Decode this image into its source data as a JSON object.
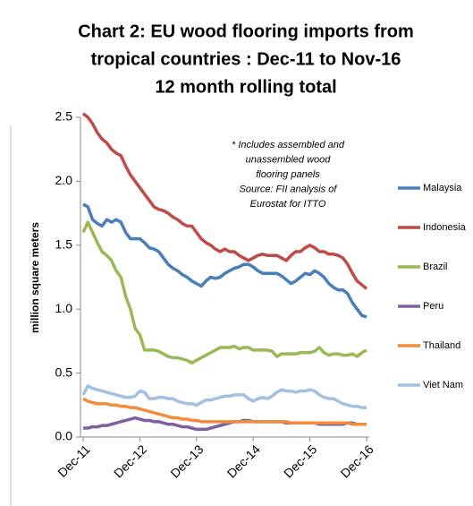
{
  "chart_data": {
    "type": "line",
    "title": [
      "Chart 2: EU wood flooring imports from",
      "tropical countries : Dec-11 to Nov-16",
      "12 month rolling total"
    ],
    "ylabel": "million square meters",
    "annotation": [
      "* Includes assembled and",
      "unassembled wood",
      "flooring panels",
      "Source: FII analysis of",
      "Eurostat for ITTO"
    ],
    "categories": [
      "Dec-11",
      null,
      null,
      null,
      null,
      null,
      null,
      null,
      null,
      null,
      null,
      null,
      "Dec-12",
      null,
      null,
      null,
      null,
      null,
      null,
      null,
      null,
      null,
      null,
      null,
      "Dec-13",
      null,
      null,
      null,
      null,
      null,
      null,
      null,
      null,
      null,
      null,
      null,
      "Dec-14",
      null,
      null,
      null,
      null,
      null,
      null,
      null,
      null,
      null,
      null,
      null,
      "Dec-15",
      null,
      null,
      null,
      null,
      null,
      null,
      null,
      null,
      null,
      null,
      null,
      "Dec-16"
    ],
    "ylim": [
      0,
      2.5
    ],
    "yticks": [
      {
        "value": 0,
        "label": "0.0"
      },
      0.5,
      {
        "value": 1,
        "label": "1.0"
      },
      1.5,
      {
        "value": 2,
        "label": "2.0"
      },
      2.5
    ],
    "grid": false,
    "legend": "right",
    "series": [
      {
        "name": "Malaysia",
        "color": "#4a7ebb",
        "values": [
          1.82,
          1.8,
          1.7,
          1.67,
          1.65,
          1.7,
          1.68,
          1.7,
          1.68,
          1.6,
          1.55,
          1.55,
          1.55,
          1.52,
          1.48,
          1.47,
          1.45,
          1.4,
          1.35,
          1.32,
          1.3,
          1.27,
          1.25,
          1.22,
          1.2,
          1.18,
          1.22,
          1.25,
          1.24,
          1.25,
          1.28,
          1.3,
          1.32,
          1.33,
          1.35,
          1.35,
          1.33,
          1.3,
          1.28,
          1.28,
          1.28,
          1.28,
          1.26,
          1.23,
          1.2,
          1.22,
          1.25,
          1.28,
          1.27,
          1.3,
          1.28,
          1.25,
          1.2,
          1.17,
          1.15,
          1.15,
          1.12,
          1.05,
          1.0,
          0.95,
          0.94
        ]
      },
      {
        "name": "Indonesia",
        "color": "#be4b48",
        "values": [
          2.53,
          2.5,
          2.45,
          2.38,
          2.33,
          2.3,
          2.25,
          2.22,
          2.2,
          2.12,
          2.05,
          2.0,
          1.95,
          1.9,
          1.85,
          1.8,
          1.78,
          1.77,
          1.75,
          1.72,
          1.7,
          1.67,
          1.65,
          1.65,
          1.6,
          1.55,
          1.52,
          1.5,
          1.47,
          1.45,
          1.47,
          1.45,
          1.45,
          1.42,
          1.4,
          1.38,
          1.4,
          1.42,
          1.43,
          1.42,
          1.42,
          1.42,
          1.4,
          1.38,
          1.42,
          1.45,
          1.45,
          1.48,
          1.5,
          1.48,
          1.45,
          1.45,
          1.43,
          1.43,
          1.42,
          1.4,
          1.35,
          1.28,
          1.22,
          1.19,
          1.16
        ]
      },
      {
        "name": "Brazil",
        "color": "#98b954",
        "values": [
          1.6,
          1.68,
          1.6,
          1.52,
          1.45,
          1.42,
          1.38,
          1.3,
          1.25,
          1.1,
          1.0,
          0.85,
          0.8,
          0.68,
          0.68,
          0.68,
          0.67,
          0.65,
          0.63,
          0.62,
          0.62,
          0.61,
          0.6,
          0.58,
          0.6,
          0.62,
          0.64,
          0.66,
          0.68,
          0.7,
          0.7,
          0.7,
          0.71,
          0.69,
          0.7,
          0.7,
          0.68,
          0.68,
          0.68,
          0.68,
          0.67,
          0.63,
          0.65,
          0.65,
          0.65,
          0.65,
          0.66,
          0.66,
          0.66,
          0.67,
          0.7,
          0.66,
          0.64,
          0.65,
          0.65,
          0.64,
          0.64,
          0.65,
          0.63,
          0.66,
          0.68
        ]
      },
      {
        "name": "Peru",
        "color": "#7d60a0",
        "values": [
          0.07,
          0.07,
          0.08,
          0.08,
          0.09,
          0.09,
          0.1,
          0.11,
          0.12,
          0.13,
          0.14,
          0.15,
          0.14,
          0.13,
          0.13,
          0.12,
          0.12,
          0.11,
          0.1,
          0.1,
          0.09,
          0.08,
          0.08,
          0.07,
          0.06,
          0.06,
          0.06,
          0.07,
          0.08,
          0.09,
          0.1,
          0.11,
          0.12,
          0.12,
          0.13,
          0.13,
          0.12,
          0.12,
          0.12,
          0.12,
          0.12,
          0.12,
          0.12,
          0.11,
          0.11,
          0.11,
          0.11,
          0.11,
          0.11,
          0.11,
          0.1,
          0.1,
          0.1,
          0.1,
          0.1,
          0.1,
          0.11,
          0.11,
          0.1,
          0.1,
          0.1
        ]
      },
      {
        "name": "Thailand",
        "color": "#f08c3c",
        "values": [
          0.3,
          0.28,
          0.27,
          0.26,
          0.26,
          0.26,
          0.25,
          0.25,
          0.24,
          0.24,
          0.23,
          0.23,
          0.22,
          0.21,
          0.2,
          0.19,
          0.18,
          0.17,
          0.16,
          0.15,
          0.15,
          0.14,
          0.14,
          0.13,
          0.13,
          0.12,
          0.12,
          0.12,
          0.12,
          0.12,
          0.12,
          0.12,
          0.12,
          0.12,
          0.12,
          0.12,
          0.12,
          0.12,
          0.12,
          0.12,
          0.12,
          0.12,
          0.12,
          0.12,
          0.11,
          0.11,
          0.11,
          0.11,
          0.11,
          0.11,
          0.11,
          0.11,
          0.11,
          0.11,
          0.11,
          0.11,
          0.11,
          0.1,
          0.1,
          0.1,
          0.1
        ]
      },
      {
        "name": "Viet Nam",
        "color": "#a5bfe0",
        "values": [
          0.33,
          0.4,
          0.38,
          0.37,
          0.36,
          0.35,
          0.34,
          0.33,
          0.32,
          0.31,
          0.31,
          0.32,
          0.36,
          0.35,
          0.3,
          0.3,
          0.31,
          0.31,
          0.3,
          0.3,
          0.28,
          0.27,
          0.26,
          0.26,
          0.25,
          0.27,
          0.29,
          0.29,
          0.3,
          0.31,
          0.32,
          0.32,
          0.33,
          0.33,
          0.33,
          0.3,
          0.28,
          0.3,
          0.31,
          0.3,
          0.32,
          0.35,
          0.37,
          0.36,
          0.36,
          0.35,
          0.36,
          0.36,
          0.37,
          0.36,
          0.33,
          0.31,
          0.3,
          0.3,
          0.28,
          0.26,
          0.25,
          0.24,
          0.24,
          0.23,
          0.23
        ]
      }
    ]
  }
}
